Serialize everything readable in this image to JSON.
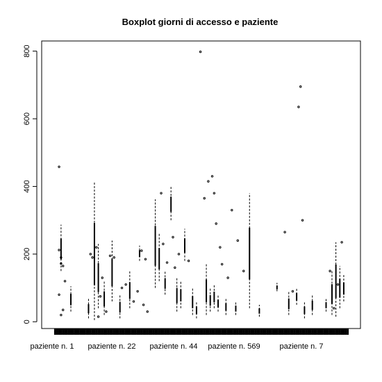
{
  "chart_data": {
    "type": "boxplot",
    "title": "Boxplot giorni di accesso e paziente",
    "xlabel": "",
    "ylabel": "",
    "ylim": [
      -20,
      830
    ],
    "yticks": [
      0,
      200,
      400,
      600,
      800
    ],
    "grid": false,
    "legend": "none",
    "x_tick_labels": [
      "paziente n. 1",
      "paziente n. 22",
      "paziente n. 44",
      "paziente n. 569",
      "paziente n. 7"
    ],
    "group_count": 150,
    "boxes": [
      {
        "index": 3,
        "whisker_low": 150,
        "whisker_high": 287
      },
      {
        "index": 8,
        "whisker_low": 30,
        "whisker_high": 105
      },
      {
        "index": 17,
        "whisker_low": 10,
        "whisker_high": 70
      },
      {
        "index": 20,
        "whisker_low": 5,
        "whisker_high": 415
      },
      {
        "index": 22,
        "whisker_low": 40,
        "whisker_high": 230
      },
      {
        "index": 25,
        "whisker_low": 20,
        "whisker_high": 120
      },
      {
        "index": 29,
        "whisker_low": 60,
        "whisker_high": 240
      },
      {
        "index": 33,
        "whisker_low": 10,
        "whisker_high": 80
      },
      {
        "index": 38,
        "whisker_low": 40,
        "whisker_high": 150
      },
      {
        "index": 43,
        "whisker_low": 180,
        "whisker_high": 225
      },
      {
        "index": 51,
        "whisker_low": 100,
        "whisker_high": 362
      },
      {
        "index": 53,
        "whisker_low": 120,
        "whisker_high": 260
      },
      {
        "index": 56,
        "whisker_low": 80,
        "whisker_high": 150
      },
      {
        "index": 59,
        "whisker_low": 300,
        "whisker_high": 400
      },
      {
        "index": 62,
        "whisker_low": 30,
        "whisker_high": 130
      },
      {
        "index": 64,
        "whisker_low": 40,
        "whisker_high": 120
      },
      {
        "index": 66,
        "whisker_low": 180,
        "whisker_high": 275
      },
      {
        "index": 70,
        "whisker_low": 20,
        "whisker_high": 100
      },
      {
        "index": 72,
        "whisker_low": 10,
        "whisker_high": 60
      },
      {
        "index": 77,
        "whisker_low": 20,
        "whisker_high": 170
      },
      {
        "index": 79,
        "whisker_low": 30,
        "whisker_high": 100
      },
      {
        "index": 81,
        "whisker_low": 40,
        "whisker_high": 110
      },
      {
        "index": 83,
        "whisker_low": 30,
        "whisker_high": 80
      },
      {
        "index": 87,
        "whisker_low": 20,
        "whisker_high": 70
      },
      {
        "index": 92,
        "whisker_low": 20,
        "whisker_high": 60
      },
      {
        "index": 99,
        "whisker_low": 40,
        "whisker_high": 380
      },
      {
        "index": 104,
        "whisker_low": 15,
        "whisker_high": 50
      },
      {
        "index": 113,
        "whisker_low": 90,
        "whisker_high": 115
      },
      {
        "index": 119,
        "whisker_low": 20,
        "whisker_high": 90
      },
      {
        "index": 123,
        "whisker_low": 50,
        "whisker_high": 100
      },
      {
        "index": 127,
        "whisker_low": 10,
        "whisker_high": 60
      },
      {
        "index": 131,
        "whisker_low": 20,
        "whisker_high": 80
      },
      {
        "index": 138,
        "whisker_low": 30,
        "whisker_high": 70
      },
      {
        "index": 141,
        "whisker_low": 20,
        "whisker_high": 150
      },
      {
        "index": 143,
        "whisker_low": 15,
        "whisker_high": 235
      },
      {
        "index": 145,
        "whisker_low": 40,
        "whisker_high": 165
      },
      {
        "index": 147,
        "whisker_low": 60,
        "whisker_high": 140
      }
    ],
    "outliers": [
      {
        "index": 2,
        "value": 458
      },
      {
        "index": 2,
        "value": 212
      },
      {
        "index": 3,
        "value": 172
      },
      {
        "index": 3,
        "value": 190
      },
      {
        "index": 4,
        "value": 165
      },
      {
        "index": 2,
        "value": 80
      },
      {
        "index": 5,
        "value": 120
      },
      {
        "index": 3,
        "value": 20
      },
      {
        "index": 4,
        "value": 35
      },
      {
        "index": 18,
        "value": 200
      },
      {
        "index": 19,
        "value": 190
      },
      {
        "index": 21,
        "value": 220
      },
      {
        "index": 24,
        "value": 130
      },
      {
        "index": 23,
        "value": 75
      },
      {
        "index": 26,
        "value": 30
      },
      {
        "index": 22,
        "value": 15
      },
      {
        "index": 28,
        "value": 195
      },
      {
        "index": 30,
        "value": 190
      },
      {
        "index": 34,
        "value": 100
      },
      {
        "index": 36,
        "value": 110
      },
      {
        "index": 40,
        "value": 60
      },
      {
        "index": 44,
        "value": 210
      },
      {
        "index": 46,
        "value": 185
      },
      {
        "index": 42,
        "value": 90
      },
      {
        "index": 45,
        "value": 50
      },
      {
        "index": 47,
        "value": 30
      },
      {
        "index": 54,
        "value": 380
      },
      {
        "index": 55,
        "value": 230
      },
      {
        "index": 57,
        "value": 175
      },
      {
        "index": 60,
        "value": 250
      },
      {
        "index": 61,
        "value": 160
      },
      {
        "index": 63,
        "value": 200
      },
      {
        "index": 68,
        "value": 180
      },
      {
        "index": 74,
        "value": 798
      },
      {
        "index": 76,
        "value": 365
      },
      {
        "index": 78,
        "value": 415
      },
      {
        "index": 80,
        "value": 430
      },
      {
        "index": 81,
        "value": 380
      },
      {
        "index": 82,
        "value": 290
      },
      {
        "index": 84,
        "value": 220
      },
      {
        "index": 85,
        "value": 170
      },
      {
        "index": 88,
        "value": 130
      },
      {
        "index": 90,
        "value": 330
      },
      {
        "index": 93,
        "value": 240
      },
      {
        "index": 96,
        "value": 150
      },
      {
        "index": 117,
        "value": 265
      },
      {
        "index": 124,
        "value": 635
      },
      {
        "index": 125,
        "value": 695
      },
      {
        "index": 126,
        "value": 300
      },
      {
        "index": 121,
        "value": 90
      },
      {
        "index": 146,
        "value": 235
      },
      {
        "index": 144,
        "value": 110
      },
      {
        "index": 142,
        "value": 40
      },
      {
        "index": 140,
        "value": 150
      }
    ]
  }
}
